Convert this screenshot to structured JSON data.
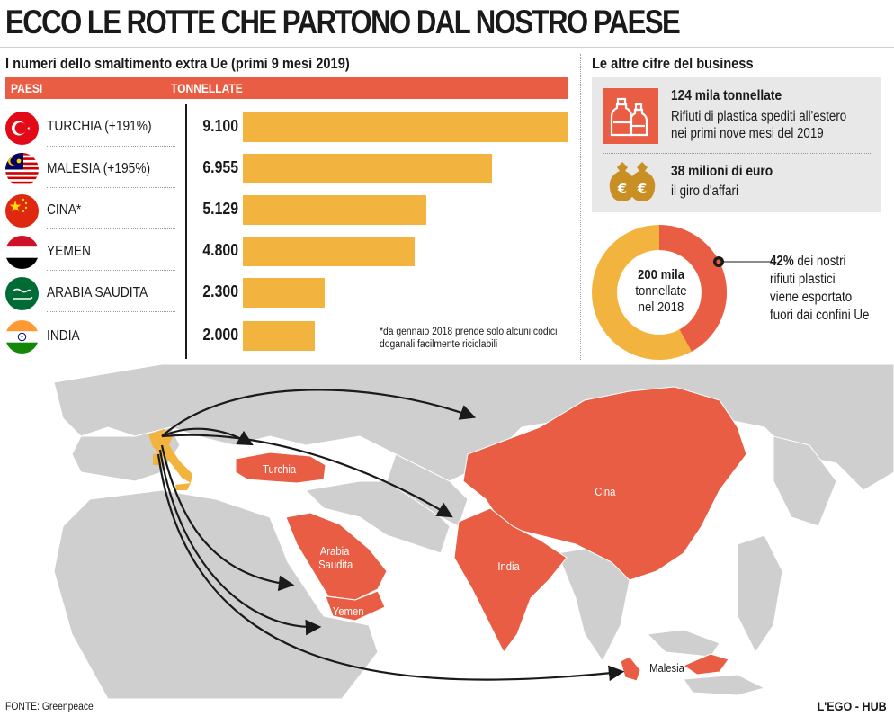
{
  "title": "ECCO LE ROTTE CHE PARTONO DAL NOSTRO PAESE",
  "chart_data": {
    "type": "bar",
    "title": "I numeri dello smaltimento extra Ue (primi 9 mesi 2019)",
    "column_headers": {
      "countries": "PAESI",
      "tonnes": "TONNELLATE"
    },
    "categories": [
      "TURCHIA (+191%)",
      "MALESIA (+195%)",
      "CINA*",
      "YEMEN",
      "ARABIA SAUDITA",
      "INDIA"
    ],
    "values": [
      9100,
      6955,
      5129,
      4800,
      2300,
      2000
    ],
    "value_labels": [
      "9.100",
      "6.955",
      "5.129",
      "4.800",
      "2.300",
      "2.000"
    ],
    "xlim": [
      0,
      9100
    ],
    "footnote": "*da gennaio 2018 prende solo alcuni codici doganali facilmente riciclabili",
    "bar_color": "#f3b43f"
  },
  "business": {
    "heading": "Le altre cifre del business",
    "stat1_strong": "124 mila tonnellate",
    "stat1_line1": "Rifiuti di plastica spediti all'estero",
    "stat1_line2": "nei primi nove mesi del 2019",
    "stat2_strong": "38 milioni di euro",
    "stat2_line1": "il giro d'affari",
    "icon1": "plastic-bottles-icon",
    "icon2": "euro-money-bags-icon"
  },
  "donut": {
    "type": "pie",
    "center_line1": "200 mila",
    "center_line2": "tonnellate",
    "center_line3": "nel 2018",
    "exported_share": 42,
    "pct_label": "42%",
    "text_line1": "dei nostri",
    "text_line2": "rifiuti plastici",
    "text_line3": "viene esportato",
    "text_line4": "fuori dai confini Ue",
    "colors": {
      "exported": "#e85d44",
      "rest": "#f3b43f"
    }
  },
  "map": {
    "labels": {
      "turkey": "Turchia",
      "saudi_line1": "Arabia",
      "saudi_line2": "Saudita",
      "yemen": "Yemen",
      "china": "Cina",
      "india": "India",
      "malaysia": "Malesia"
    },
    "colors": {
      "highlight": "#e85d44",
      "origin": "#f3b43f",
      "land": "#cfcfcf",
      "sea": "#ffffff"
    }
  },
  "source": "FONTE: Greenpeace",
  "brand": "L'EGO - HUB",
  "colors": {
    "accent": "#e85d44",
    "bar": "#f3b43f"
  }
}
